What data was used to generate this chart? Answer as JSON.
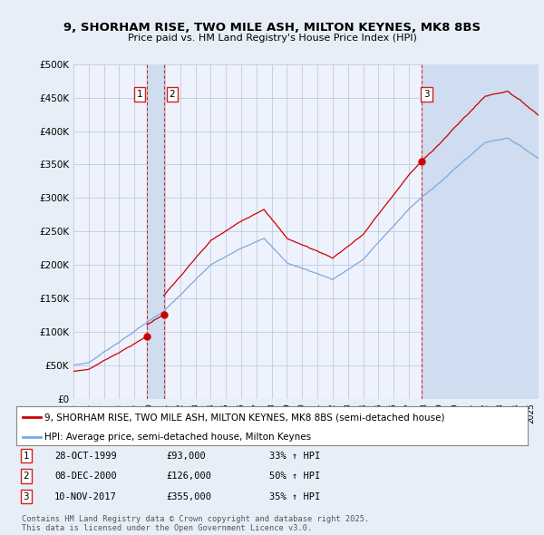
{
  "title": "9, SHORHAM RISE, TWO MILE ASH, MILTON KEYNES, MK8 8BS",
  "subtitle": "Price paid vs. HM Land Registry's House Price Index (HPI)",
  "property_label": "9, SHORHAM RISE, TWO MILE ASH, MILTON KEYNES, MK8 8BS (semi-detached house)",
  "hpi_label": "HPI: Average price, semi-detached house, Milton Keynes",
  "footer": "Contains HM Land Registry data © Crown copyright and database right 2025.\nThis data is licensed under the Open Government Licence v3.0.",
  "sales": [
    {
      "num": 1,
      "date": "28-OCT-1999",
      "price": 93000,
      "hpi_change": "33% ↑ HPI",
      "year": 1999.83
    },
    {
      "num": 2,
      "date": "08-DEC-2000",
      "price": 126000,
      "hpi_change": "50% ↑ HPI",
      "year": 2000.92
    },
    {
      "num": 3,
      "date": "10-NOV-2017",
      "price": 355000,
      "hpi_change": "35% ↑ HPI",
      "year": 2017.86
    }
  ],
  "bg_color": "#e8eef8",
  "plot_bg_color": "#eef2fc",
  "grid_color": "#b8c4d8",
  "property_line_color": "#cc0000",
  "hpi_line_color": "#7aaadd",
  "sale_vline_color": "#cc2222",
  "highlight_color": "#d0dcf0",
  "ylim": [
    0,
    500000
  ],
  "yticks": [
    0,
    50000,
    100000,
    150000,
    200000,
    250000,
    300000,
    350000,
    400000,
    450000,
    500000
  ],
  "xlim_start": 1995.0,
  "xlim_end": 2025.5
}
